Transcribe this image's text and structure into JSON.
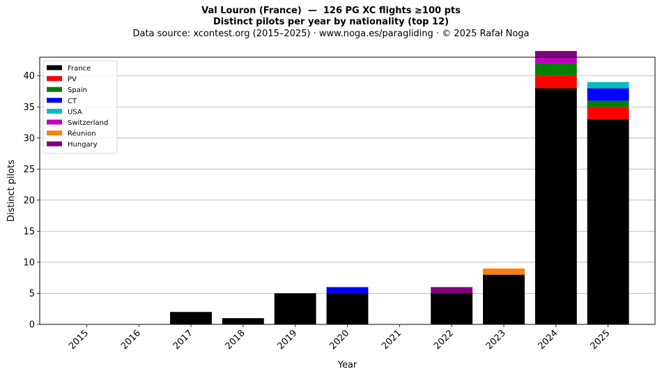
{
  "chart_data": {
    "type": "bar",
    "stacked": true,
    "title": "Val Louron (France)  —  126 PG XC flights ≥100 pts",
    "subtitle": "Distinct pilots per year by nationality (top 12)",
    "source_note": "Data source: xcontest.org (2015–2025)  ·  www.noga.es/paragliding  ·  © 2025 Rafał Noga",
    "xlabel": "Year",
    "ylabel": "Distinct pilots",
    "ylim": [
      0,
      43
    ],
    "yticks": [
      0,
      5,
      10,
      15,
      20,
      25,
      30,
      35,
      40
    ],
    "grid": "horizontal",
    "legend_position": "top-left",
    "categories": [
      "2015",
      "2016",
      "2017",
      "2018",
      "2019",
      "2020",
      "2021",
      "2022",
      "2023",
      "2024",
      "2025"
    ],
    "series": [
      {
        "name": "France",
        "color": "#000000",
        "values": [
          0,
          0,
          2,
          1,
          5,
          5,
          0,
          5,
          8,
          38,
          33
        ]
      },
      {
        "name": "PV",
        "color": "#ff0000",
        "values": [
          0,
          0,
          0,
          0,
          0,
          0,
          0,
          0,
          0,
          2,
          2
        ]
      },
      {
        "name": "Spain",
        "color": "#008000",
        "values": [
          0,
          0,
          0,
          0,
          0,
          0,
          0,
          0,
          0,
          2,
          1
        ]
      },
      {
        "name": "CT",
        "color": "#0000ff",
        "values": [
          0,
          0,
          0,
          0,
          0,
          1,
          0,
          0,
          0,
          0,
          2
        ]
      },
      {
        "name": "USA",
        "color": "#00bfbf",
        "values": [
          0,
          0,
          0,
          0,
          0,
          0,
          0,
          0,
          0,
          0,
          1
        ]
      },
      {
        "name": "Switzerland",
        "color": "#bf00bf",
        "values": [
          0,
          0,
          0,
          0,
          0,
          0,
          0,
          0,
          0,
          1,
          0
        ]
      },
      {
        "name": "Réunion",
        "color": "#ff7f0e",
        "values": [
          0,
          0,
          0,
          0,
          0,
          0,
          0,
          0,
          1,
          0,
          0
        ]
      },
      {
        "name": "Hungary",
        "color": "#800080",
        "values": [
          0,
          0,
          0,
          0,
          0,
          0,
          0,
          1,
          0,
          1,
          0
        ]
      }
    ]
  }
}
